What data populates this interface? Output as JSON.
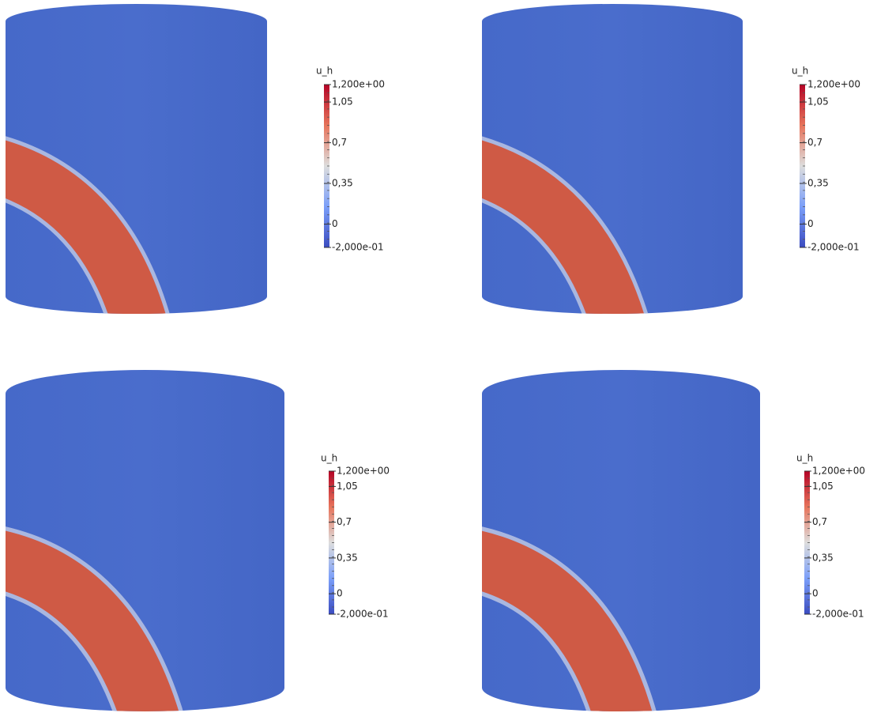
{
  "panels": [
    {
      "colorbar": {
        "title": "u_h",
        "ticks": [
          {
            "value": 1.2,
            "label": "1,200e+00"
          },
          {
            "value": 1.05,
            "label": "1,05"
          },
          {
            "value": 0.7,
            "label": "0,7"
          },
          {
            "value": 0.35,
            "label": "0,35"
          },
          0,
          {
            "value": -0.2,
            "label": "-2,000e-01"
          }
        ]
      }
    },
    {
      "colorbar": {
        "title": "u_h",
        "ticks": [
          {
            "value": 1.2,
            "label": "1,200e+00"
          },
          {
            "value": 1.05,
            "label": "1,05"
          },
          {
            "value": 0.7,
            "label": "0,7"
          },
          {
            "value": 0.35,
            "label": "0,35"
          },
          0,
          {
            "value": -0.2,
            "label": "-2,000e-01"
          }
        ]
      }
    },
    {
      "colorbar": {
        "title": "u_h",
        "ticks": [
          {
            "value": 1.2,
            "label": "1,200e+00"
          },
          {
            "value": 1.05,
            "label": "1,05"
          },
          {
            "value": 0.7,
            "label": "0,7"
          },
          {
            "value": 0.35,
            "label": "0,35"
          },
          0,
          {
            "value": -0.2,
            "label": "-2,000e-01"
          }
        ]
      }
    },
    {
      "colorbar": {
        "title": "u_h",
        "ticks": [
          {
            "value": 1.2,
            "label": "1,200e+00"
          },
          {
            "value": 1.05,
            "label": "1,05"
          },
          {
            "value": 0.7,
            "label": "0,7"
          },
          {
            "value": 0.35,
            "label": "0,35"
          },
          0,
          {
            "value": -0.2,
            "label": "-2,000e-01"
          }
        ]
      }
    }
  ]
}
